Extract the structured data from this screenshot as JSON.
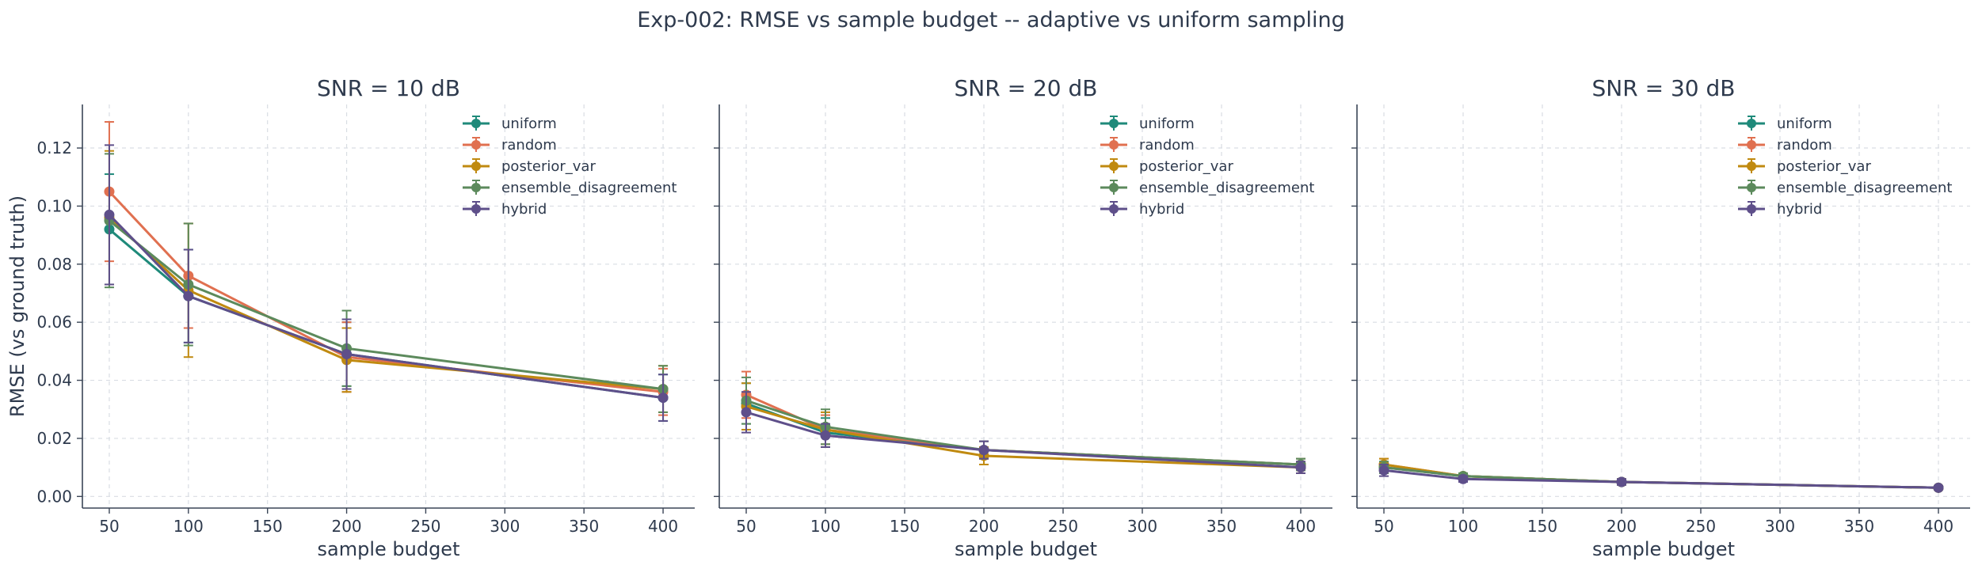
{
  "figure": {
    "title": "Exp-002: RMSE vs sample budget -- adaptive vs uniform sampling"
  },
  "series_styles": [
    {
      "name": "uniform",
      "color": "#1f8a7a"
    },
    {
      "name": "random",
      "color": "#e07050"
    },
    {
      "name": "posterior_var",
      "color": "#c08a10"
    },
    {
      "name": "ensemble_disagreement",
      "color": "#5c8a5c"
    },
    {
      "name": "hybrid",
      "color": "#5e4f8a"
    }
  ],
  "chart_data": [
    {
      "type": "line",
      "title": "SNR = 10 dB",
      "xlabel": "sample budget",
      "ylabel": "RMSE (vs ground truth)",
      "x": [
        50,
        100,
        200,
        400
      ],
      "xlim": [
        33,
        420
      ],
      "ylim": [
        -0.004,
        0.135
      ],
      "xticks": [
        50,
        100,
        150,
        200,
        250,
        300,
        350,
        400
      ],
      "yticks": [
        "0.00",
        "0.02",
        "0.04",
        "0.06",
        "0.08",
        "0.10",
        "0.12"
      ],
      "grid": true,
      "legend_position": "top-right",
      "series": [
        {
          "name": "uniform",
          "values": [
            0.092,
            0.069,
            0.049,
            0.034
          ],
          "err": [
            0.019,
            0.016,
            0.011,
            0.008
          ]
        },
        {
          "name": "random",
          "values": [
            0.105,
            0.076,
            0.048,
            0.036
          ],
          "err": [
            0.024,
            0.018,
            0.012,
            0.008
          ]
        },
        {
          "name": "posterior_var",
          "values": [
            0.096,
            0.071,
            0.047,
            0.037
          ],
          "err": [
            0.023,
            0.023,
            0.011,
            0.008
          ]
        },
        {
          "name": "ensemble_disagreement",
          "values": [
            0.095,
            0.073,
            0.051,
            0.037
          ],
          "err": [
            0.023,
            0.021,
            0.013,
            0.008
          ]
        },
        {
          "name": "hybrid",
          "values": [
            0.097,
            0.069,
            0.049,
            0.034
          ],
          "err": [
            0.024,
            0.016,
            0.012,
            0.008
          ]
        }
      ]
    },
    {
      "type": "line",
      "title": "SNR = 20 dB",
      "xlabel": "sample budget",
      "ylabel": "",
      "x": [
        50,
        100,
        200,
        400
      ],
      "xlim": [
        33,
        420
      ],
      "ylim": [
        -0.004,
        0.135
      ],
      "xticks": [
        50,
        100,
        150,
        200,
        250,
        300,
        350,
        400
      ],
      "yticks": [],
      "grid": true,
      "legend_position": "top-right",
      "series": [
        {
          "name": "uniform",
          "values": [
            0.032,
            0.022,
            0.016,
            0.011
          ],
          "err": [
            0.007,
            0.005,
            0.003,
            0.002
          ]
        },
        {
          "name": "random",
          "values": [
            0.035,
            0.023,
            0.016,
            0.011
          ],
          "err": [
            0.008,
            0.005,
            0.003,
            0.002
          ]
        },
        {
          "name": "posterior_var",
          "values": [
            0.031,
            0.023,
            0.014,
            0.01
          ],
          "err": [
            0.008,
            0.006,
            0.003,
            0.002
          ]
        },
        {
          "name": "ensemble_disagreement",
          "values": [
            0.033,
            0.024,
            0.016,
            0.011
          ],
          "err": [
            0.008,
            0.006,
            0.003,
            0.002
          ]
        },
        {
          "name": "hybrid",
          "values": [
            0.029,
            0.021,
            0.016,
            0.01
          ],
          "err": [
            0.007,
            0.004,
            0.003,
            0.002
          ]
        }
      ]
    },
    {
      "type": "line",
      "title": "SNR = 30 dB",
      "xlabel": "sample budget",
      "ylabel": "",
      "x": [
        50,
        100,
        200,
        400
      ],
      "xlim": [
        33,
        420
      ],
      "ylim": [
        -0.004,
        0.135
      ],
      "xticks": [
        50,
        100,
        150,
        200,
        250,
        300,
        350,
        400
      ],
      "yticks": [],
      "grid": true,
      "legend_position": "top-right",
      "series": [
        {
          "name": "uniform",
          "values": [
            0.01,
            0.007,
            0.005,
            0.003
          ],
          "err": [
            0.002,
            0.001,
            0.001,
            0.0006
          ]
        },
        {
          "name": "random",
          "values": [
            0.011,
            0.007,
            0.005,
            0.003
          ],
          "err": [
            0.002,
            0.001,
            0.001,
            0.0006
          ]
        },
        {
          "name": "posterior_var",
          "values": [
            0.011,
            0.007,
            0.005,
            0.003
          ],
          "err": [
            0.002,
            0.001,
            0.001,
            0.0006
          ]
        },
        {
          "name": "ensemble_disagreement",
          "values": [
            0.01,
            0.007,
            0.005,
            0.003
          ],
          "err": [
            0.002,
            0.001,
            0.001,
            0.0006
          ]
        },
        {
          "name": "hybrid",
          "values": [
            0.009,
            0.006,
            0.005,
            0.003
          ],
          "err": [
            0.002,
            0.001,
            0.001,
            0.0006
          ]
        }
      ]
    }
  ]
}
